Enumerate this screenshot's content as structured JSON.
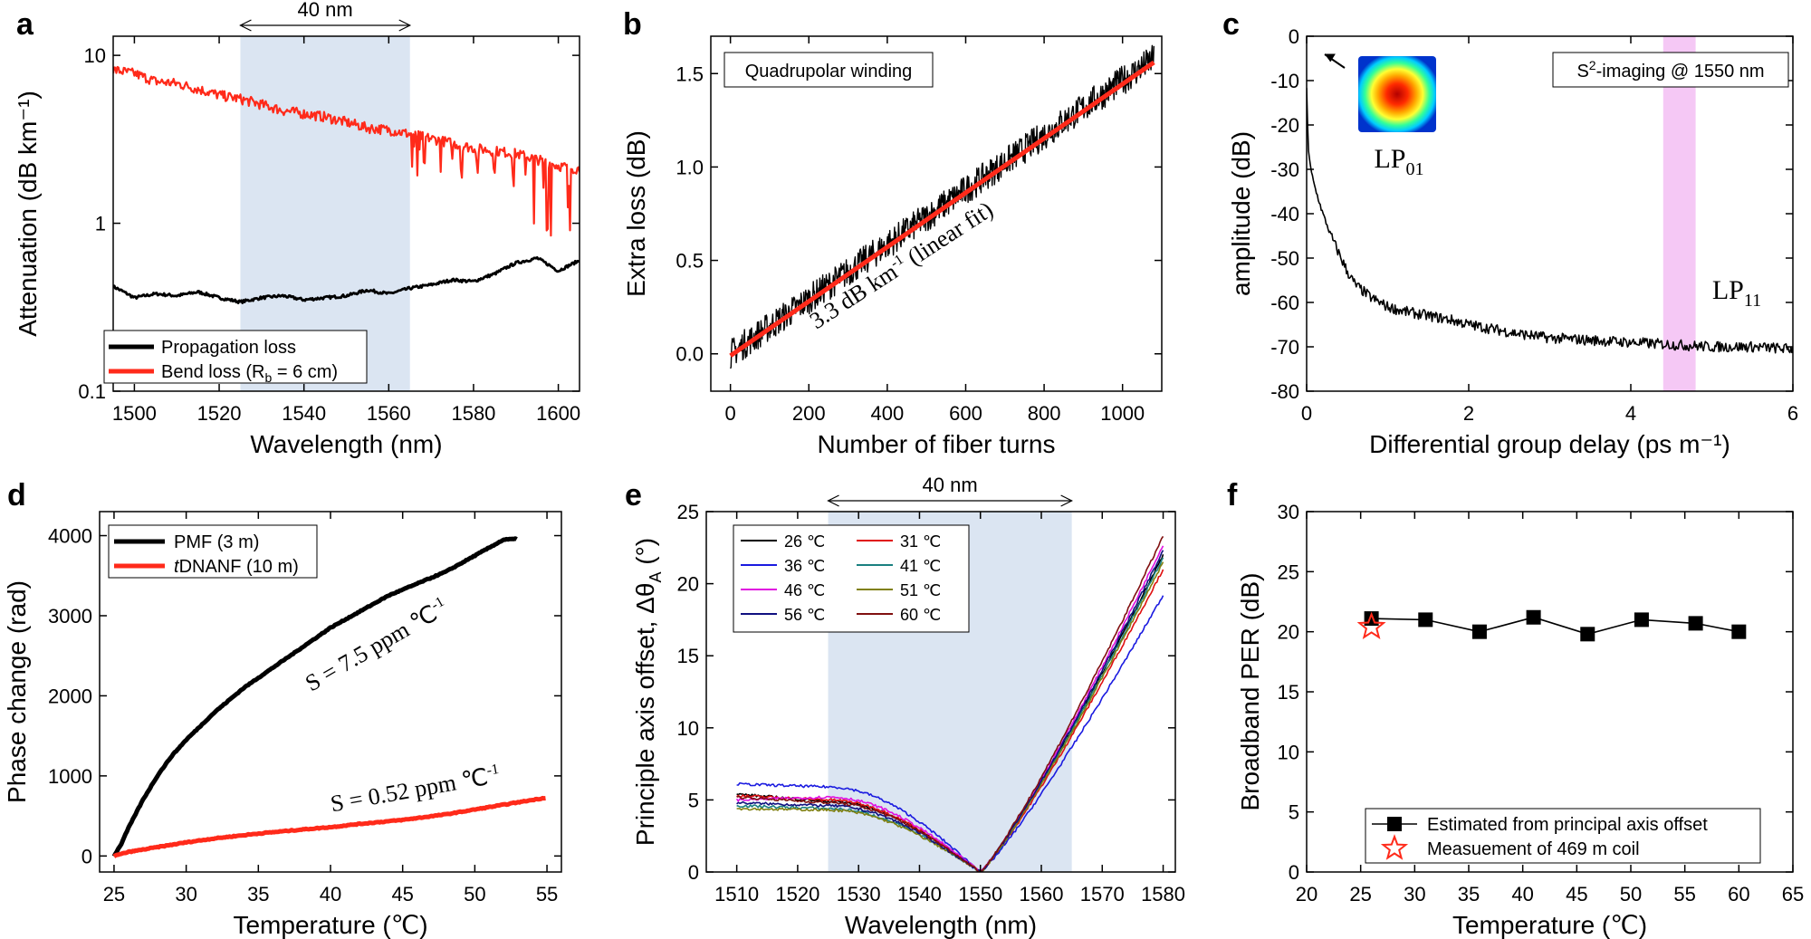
{
  "panels": {
    "a": "a",
    "b": "b",
    "c": "c",
    "d": "d",
    "e": "e",
    "f": "f"
  },
  "chart_data": [
    {
      "id": "a",
      "type": "line",
      "xlabel": "Wavelength (nm)",
      "ylabel": "Attenuation (dB km⁻¹)",
      "xlim": [
        1495,
        1605
      ],
      "ylim": [
        0.1,
        13
      ],
      "yscale": "log",
      "xticks": [
        1500,
        1520,
        1540,
        1560,
        1580,
        1600
      ],
      "yticks": [
        0.1,
        1,
        10
      ],
      "ytick_labels": [
        "0.1",
        "1",
        "10"
      ],
      "shaded_band": {
        "x": [
          1525,
          1565
        ],
        "color": "#dbe5f2",
        "annotation": "40 nm"
      },
      "legend_position": "lower-left",
      "series": [
        {
          "name": "Propagation loss",
          "color": "#000000",
          "x": [
            1495,
            1500,
            1505,
            1510,
            1515,
            1520,
            1525,
            1530,
            1535,
            1540,
            1545,
            1550,
            1555,
            1560,
            1565,
            1570,
            1575,
            1580,
            1585,
            1590,
            1595,
            1600,
            1605
          ],
          "y": [
            0.42,
            0.36,
            0.38,
            0.37,
            0.39,
            0.36,
            0.34,
            0.36,
            0.37,
            0.35,
            0.36,
            0.37,
            0.4,
            0.38,
            0.41,
            0.43,
            0.46,
            0.45,
            0.5,
            0.58,
            0.62,
            0.52,
            0.6
          ]
        },
        {
          "name": "Bend loss (R",
          "name_sub": "b",
          "name_tail": " = 6 cm)",
          "color": "#ff2a1a",
          "x": [
            1495,
            1500,
            1505,
            1510,
            1515,
            1520,
            1525,
            1530,
            1535,
            1540,
            1545,
            1550,
            1555,
            1560,
            1565,
            1570,
            1575,
            1580,
            1585,
            1590,
            1595,
            1600,
            1605
          ],
          "y": [
            8.2,
            7.8,
            7.0,
            6.8,
            6.3,
            5.8,
            5.5,
            5.1,
            4.7,
            4.5,
            4.3,
            4.0,
            3.7,
            3.6,
            3.4,
            3.2,
            3.0,
            2.8,
            2.7,
            2.6,
            2.4,
            2.2,
            2.1
          ]
        }
      ]
    },
    {
      "id": "b",
      "type": "line",
      "xlabel": "Number of fiber turns",
      "ylabel": "Extra loss (dB)",
      "xlim": [
        -50,
        1100
      ],
      "ylim": [
        -0.2,
        1.7
      ],
      "xticks": [
        0,
        200,
        400,
        600,
        800,
        1000
      ],
      "yticks": [
        0.0,
        0.5,
        1.0,
        1.5
      ],
      "ytick_labels": [
        "0.0",
        "0.5",
        "1.0",
        "1.5"
      ],
      "boxed_label": "Quadrupolar winding",
      "annotation": {
        "text": "3.3 dB km",
        "sup": "-1",
        "tail": " (linear fit)",
        "color": "#ff2a1a"
      },
      "series": [
        {
          "name": "",
          "color": "#000000",
          "x": [
            0,
            1080
          ],
          "y": [
            0.0,
            1.58
          ],
          "noise": 0.08
        },
        {
          "name": "",
          "color": "#ff2a1a",
          "x": [
            0,
            1080
          ],
          "y": [
            -0.01,
            1.56
          ]
        }
      ]
    },
    {
      "id": "c",
      "type": "line",
      "xlabel": "Differential group delay (ps m⁻¹)",
      "ylabel": "amplitude (dB)",
      "xlim": [
        0,
        6
      ],
      "ylim": [
        -80,
        0
      ],
      "xticks": [
        0,
        2,
        4,
        6
      ],
      "yticks": [
        0,
        -10,
        -20,
        -30,
        -40,
        -50,
        -60,
        -70,
        -80
      ],
      "boxed_label": {
        "pre": "S",
        "sup": "2",
        "post": "-imaging @ 1550 nm"
      },
      "shaded_band": {
        "x": [
          4.4,
          4.8
        ],
        "color": "#f5c8f5"
      },
      "mode_labels": {
        "lp01": "LP",
        "lp01_sub": "01",
        "lp11": "LP",
        "lp11_sub": "11"
      },
      "series": [
        {
          "name": "",
          "color": "#000000",
          "x": [
            0.0,
            0.02,
            0.05,
            0.1,
            0.2,
            0.3,
            0.4,
            0.5,
            0.6,
            0.8,
            1.0,
            1.2,
            1.5,
            1.8,
            2.0,
            2.3,
            2.6,
            3.0,
            3.5,
            4.0,
            4.5,
            5.0,
            5.5,
            6.0
          ],
          "y": [
            -12,
            -25,
            -30,
            -34,
            -40,
            -45,
            -49,
            -53,
            -56,
            -59,
            -61,
            -62,
            -63,
            -64,
            -65,
            -66,
            -67,
            -68,
            -68.5,
            -69,
            -69.5,
            -70,
            -70,
            -70.5
          ]
        }
      ]
    },
    {
      "id": "d",
      "type": "line",
      "xlabel": "Temperature (℃)",
      "ylabel": "Phase change (rad)",
      "xlim": [
        24,
        56
      ],
      "ylim": [
        -200,
        4300
      ],
      "xticks": [
        25,
        30,
        35,
        40,
        45,
        50,
        55
      ],
      "yticks": [
        0,
        1000,
        2000,
        3000,
        4000
      ],
      "legend_position": "top-left",
      "annotations": [
        {
          "text": "S = 7.5 ppm ℃",
          "sup": "-1",
          "color": "#000000"
        },
        {
          "text": "S = 0.52 ppm ℃",
          "sup": "-1",
          "color": "#ff2a1a"
        }
      ],
      "series": [
        {
          "name": "PMF  (3 m)",
          "color": "#000000",
          "x": [
            25,
            25.5,
            26,
            27,
            28,
            29,
            30,
            32,
            34,
            36,
            38,
            40,
            42,
            44,
            46,
            48,
            50,
            52,
            53
          ],
          "y": [
            0,
            150,
            350,
            700,
            1000,
            1250,
            1450,
            1800,
            2100,
            2350,
            2600,
            2850,
            3050,
            3250,
            3400,
            3550,
            3750,
            3950,
            3960
          ]
        },
        {
          "name": "DNANF  (10 m)",
          "name_prefix": "t",
          "color": "#ff2a1a",
          "x": [
            25,
            26,
            28,
            30,
            32,
            35,
            38,
            40,
            42,
            45,
            48,
            50,
            52,
            55
          ],
          "y": [
            0,
            50,
            110,
            170,
            220,
            280,
            330,
            360,
            400,
            450,
            520,
            580,
            640,
            730
          ]
        }
      ]
    },
    {
      "id": "e",
      "type": "line",
      "xlabel": "Wavelength (nm)",
      "ylabel": "Principle axis offset, Δθ",
      "ylabel_sub": "A",
      "ylabel_tail": " (°)",
      "xlim": [
        1505,
        1582
      ],
      "ylim": [
        0,
        25
      ],
      "xticks": [
        1510,
        1520,
        1530,
        1540,
        1550,
        1560,
        1570,
        1580
      ],
      "yticks": [
        0,
        5,
        10,
        15,
        20,
        25
      ],
      "shaded_band": {
        "x": [
          1525,
          1565
        ],
        "color": "#dbe5f2",
        "annotation": "40 nm"
      },
      "legend_position": "top-left",
      "series": [
        {
          "name": "26 ℃",
          "color": "#000000",
          "y0": 5.4,
          "flat": 4.9,
          "end": 22.0
        },
        {
          "name": "31 ℃",
          "color": "#e01010",
          "y0": 5.3,
          "flat": 5.0,
          "end": 21.0
        },
        {
          "name": "36 ℃",
          "color": "#1a1ae0",
          "y0": 6.1,
          "flat": 5.9,
          "end": 19.2
        },
        {
          "name": "41 ℃",
          "color": "#1a8080",
          "y0": 4.6,
          "flat": 4.4,
          "end": 21.8
        },
        {
          "name": "46 ℃",
          "color": "#e010e0",
          "y0": 5.0,
          "flat": 5.2,
          "end": 22.7
        },
        {
          "name": "51 ℃",
          "color": "#808010",
          "y0": 4.4,
          "flat": 4.3,
          "end": 21.5
        },
        {
          "name": "56 ℃",
          "color": "#101080",
          "y0": 4.8,
          "flat": 4.6,
          "end": 22.3
        },
        {
          "name": "60 ℃",
          "color": "#801010",
          "y0": 5.2,
          "flat": 4.8,
          "end": 23.3
        }
      ]
    },
    {
      "id": "f",
      "type": "line",
      "xlabel": "Temperature (℃)",
      "ylabel": "Broadband PER (dB)",
      "xlim": [
        20,
        65
      ],
      "ylim": [
        0,
        30
      ],
      "xticks": [
        20,
        25,
        30,
        35,
        40,
        45,
        50,
        55,
        60,
        65
      ],
      "yticks": [
        0,
        5,
        10,
        15,
        20,
        25,
        30
      ],
      "legend_position": "bottom",
      "series": [
        {
          "name": "Estimated from principal axis offset",
          "color": "#000000",
          "marker": "square",
          "x": [
            26,
            31,
            36,
            41,
            46,
            51,
            56,
            60
          ],
          "y": [
            21.1,
            21.0,
            20.0,
            21.2,
            19.8,
            21.0,
            20.7,
            20.0
          ]
        },
        {
          "name": "Measuement of 469 m coil",
          "color": "#ff2a1a",
          "marker": "star",
          "x": [
            26
          ],
          "y": [
            20.4
          ]
        }
      ]
    }
  ]
}
